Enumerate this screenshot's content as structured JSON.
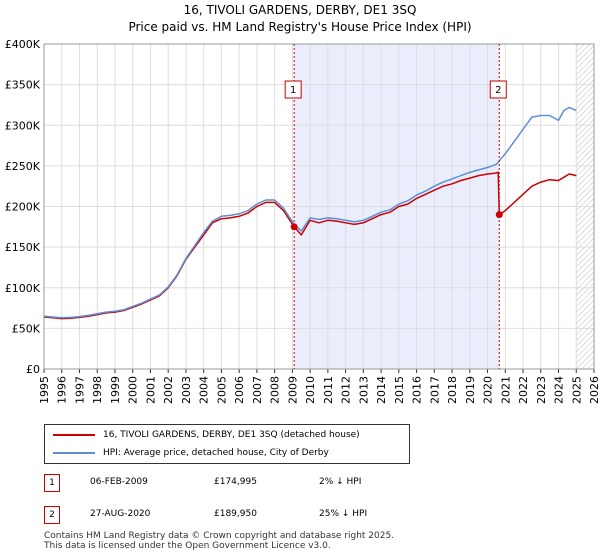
{
  "chart_data": {
    "type": "line",
    "title": "16, TIVOLI GARDENS, DERBY, DE1 3SQ",
    "subtitle": "Price paid vs. HM Land Registry's House Price Index (HPI)",
    "ylim": [
      0,
      400000
    ],
    "yticks": [
      0,
      50000,
      100000,
      150000,
      200000,
      250000,
      300000,
      350000,
      400000
    ],
    "ytick_labels": [
      "£0",
      "£50K",
      "£100K",
      "£150K",
      "£200K",
      "£250K",
      "£300K",
      "£350K",
      "£400K"
    ],
    "xlim": [
      1995,
      2026
    ],
    "xticks": [
      1995,
      1996,
      1997,
      1998,
      1999,
      2000,
      2001,
      2002,
      2003,
      2004,
      2005,
      2006,
      2007,
      2008,
      2009,
      2010,
      2011,
      2012,
      2013,
      2014,
      2015,
      2016,
      2017,
      2018,
      2019,
      2020,
      2021,
      2022,
      2023,
      2024,
      2025,
      2026
    ],
    "shaded_period": [
      2009.1,
      2020.65
    ],
    "future_from": 2025.0,
    "series": [
      {
        "name": "16, TIVOLI GARDENS, DERBY, DE1 3SQ (detached house)",
        "color": "#cc0000",
        "x": [
          1995.0,
          1995.5,
          1996.0,
          1996.5,
          1997.0,
          1997.5,
          1998.0,
          1998.5,
          1999.0,
          1999.5,
          2000.0,
          2000.5,
          2001.0,
          2001.5,
          2002.0,
          2002.5,
          2003.0,
          2003.5,
          2004.0,
          2004.5,
          2005.0,
          2005.5,
          2006.0,
          2006.5,
          2007.0,
          2007.5,
          2008.0,
          2008.5,
          2008.8,
          2009.1,
          2009.5,
          2010.0,
          2010.5,
          2011.0,
          2011.5,
          2012.0,
          2012.5,
          2013.0,
          2013.5,
          2014.0,
          2014.5,
          2015.0,
          2015.5,
          2016.0,
          2016.5,
          2017.0,
          2017.5,
          2018.0,
          2018.5,
          2019.0,
          2019.5,
          2020.0,
          2020.4,
          2020.6,
          2020.66,
          2021.0,
          2021.5,
          2022.0,
          2022.5,
          2023.0,
          2023.5,
          2024.0,
          2024.3,
          2024.6,
          2025.0
        ],
        "values": [
          64000,
          63000,
          62000,
          62500,
          63500,
          65000,
          67000,
          69000,
          70000,
          72000,
          76000,
          80000,
          85000,
          90000,
          100000,
          115000,
          135000,
          150000,
          165000,
          180000,
          185000,
          186000,
          188000,
          192000,
          200000,
          205000,
          205000,
          195000,
          185000,
          174995,
          165000,
          183000,
          180000,
          183000,
          182000,
          180000,
          178000,
          180000,
          185000,
          190000,
          193000,
          200000,
          203000,
          210000,
          215000,
          220000,
          225000,
          228000,
          232000,
          235000,
          238000,
          240000,
          241000,
          242000,
          189950,
          195000,
          205000,
          215000,
          225000,
          230000,
          233000,
          232000,
          236000,
          240000,
          238000
        ]
      },
      {
        "name": "HPI: Average price, detached house, City of Derby",
        "color": "#5b8fd6",
        "x": [
          1995.0,
          1995.5,
          1996.0,
          1996.5,
          1997.0,
          1997.5,
          1998.0,
          1998.5,
          1999.0,
          1999.5,
          2000.0,
          2000.5,
          2001.0,
          2001.5,
          2002.0,
          2002.5,
          2003.0,
          2003.5,
          2004.0,
          2004.5,
          2005.0,
          2005.5,
          2006.0,
          2006.5,
          2007.0,
          2007.5,
          2008.0,
          2008.5,
          2008.8,
          2009.1,
          2009.5,
          2010.0,
          2010.5,
          2011.0,
          2011.5,
          2012.0,
          2012.5,
          2013.0,
          2013.5,
          2014.0,
          2014.5,
          2015.0,
          2015.5,
          2016.0,
          2016.5,
          2017.0,
          2017.5,
          2018.0,
          2018.5,
          2019.0,
          2019.5,
          2020.0,
          2020.5,
          2021.0,
          2021.5,
          2022.0,
          2022.5,
          2023.0,
          2023.5,
          2024.0,
          2024.3,
          2024.6,
          2025.0
        ],
        "values": [
          65000,
          64000,
          63000,
          63500,
          64500,
          66000,
          68000,
          70000,
          71000,
          73000,
          77000,
          81000,
          86000,
          91000,
          101000,
          116000,
          136000,
          152000,
          168000,
          182000,
          188000,
          189000,
          191000,
          195000,
          203000,
          208000,
          208000,
          198000,
          188000,
          178000,
          170000,
          186000,
          184000,
          186000,
          185000,
          183000,
          181000,
          183000,
          188000,
          193000,
          196000,
          203000,
          207000,
          214000,
          219000,
          225000,
          230000,
          234000,
          238000,
          242000,
          245000,
          248000,
          252000,
          265000,
          280000,
          295000,
          310000,
          312000,
          312000,
          306000,
          318000,
          322000,
          318000
        ]
      }
    ],
    "markers": [
      {
        "label": "1",
        "x": 2009.1,
        "value": 174995
      },
      {
        "label": "2",
        "x": 2020.66,
        "value": 189950
      }
    ]
  },
  "legend": {
    "property_label": "16, TIVOLI GARDENS, DERBY, DE1 3SQ (detached house)",
    "hpi_label": "HPI: Average price, detached house, City of Derby",
    "property_color": "#cc0000",
    "hpi_color": "#5b8fd6"
  },
  "sales": [
    {
      "num": "1",
      "date": "06-FEB-2009",
      "price": "£174,995",
      "hpi": "2% ↓ HPI"
    },
    {
      "num": "2",
      "date": "27-AUG-2020",
      "price": "£189,950",
      "hpi": "25% ↓ HPI"
    }
  ],
  "footer": {
    "line1": "Contains HM Land Registry data © Crown copyright and database right 2025.",
    "line2": "This data is licensed under the Open Government Licence v3.0."
  }
}
